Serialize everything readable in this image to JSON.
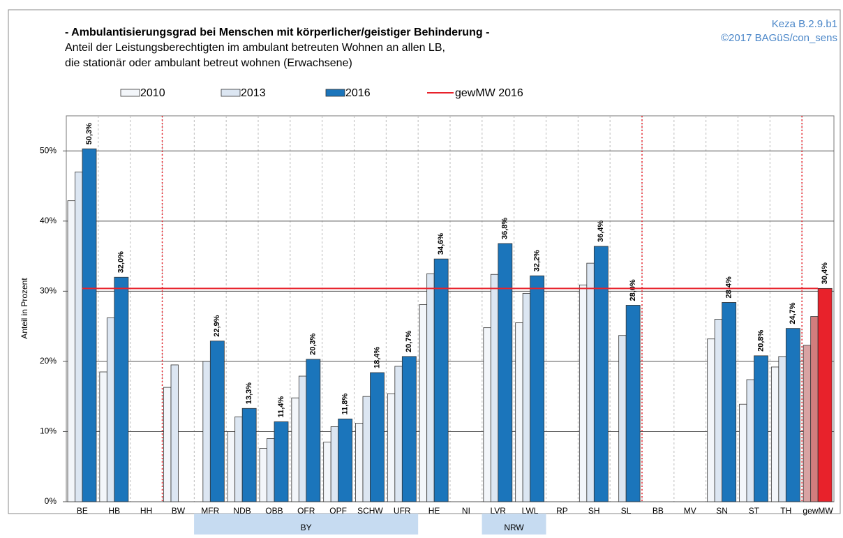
{
  "chart_data": {
    "type": "bar",
    "title": "- Ambulantisierungsgrad bei Menschen mit körperlicher/geistiger Behinderung -",
    "subtitle": [
      "Anteil der Leistungsberechtigten im ambulant betreuten Wohnen an allen LB,",
      "die stationär oder ambulant betreut wohnen (Erwachsene)"
    ],
    "source": [
      "Keza B.2.9.b1",
      "©2017 BAGüS/con_sens"
    ],
    "ylabel": "Anteil in Prozent",
    "categories": [
      "BE",
      "HB",
      "HH",
      "BW",
      "MFR",
      "NDB",
      "OBB",
      "OFR",
      "OPF",
      "SCHW",
      "UFR",
      "HE",
      "NI",
      "LVR",
      "LWL",
      "RP",
      "SH",
      "SL",
      "BB",
      "MV",
      "SN",
      "ST",
      "TH",
      "gewMW"
    ],
    "series": [
      {
        "name": "2010",
        "color": "#f3f6fa",
        "highlight_color": "#d9a3a3",
        "values": [
          42.9,
          18.5,
          null,
          16.3,
          null,
          10.0,
          7.6,
          14.8,
          8.5,
          11.2,
          15.4,
          28.1,
          null,
          24.8,
          25.5,
          null,
          30.9,
          null,
          null,
          null,
          23.2,
          13.9,
          19.2,
          22.3
        ]
      },
      {
        "name": "2013",
        "color": "#dce6f2",
        "highlight_color": "#d27d7d",
        "values": [
          47.0,
          26.2,
          null,
          19.5,
          20.0,
          12.1,
          9.0,
          17.9,
          10.7,
          15.0,
          19.3,
          32.5,
          null,
          32.4,
          29.7,
          null,
          34.0,
          23.7,
          null,
          null,
          26.0,
          17.4,
          20.7,
          26.4
        ]
      },
      {
        "name": "2016",
        "color": "#1b75bb",
        "highlight_color": "#e8222b",
        "values": [
          50.3,
          32.0,
          null,
          null,
          22.9,
          13.3,
          11.4,
          20.3,
          11.8,
          18.4,
          20.7,
          34.6,
          null,
          36.8,
          32.2,
          null,
          36.4,
          28.0,
          null,
          null,
          28.4,
          20.8,
          24.7,
          30.4
        ],
        "value_labels": [
          "50,3%",
          "32,0%",
          null,
          null,
          "22,9%",
          "13,3%",
          "11,4%",
          "20,3%",
          "11,8%",
          "18,4%",
          "20,7%",
          "34,6%",
          null,
          "36,8%",
          "32,2%",
          null,
          "36,4%",
          "28,0%",
          null,
          null,
          "28,4%",
          "20,8%",
          "24,7%",
          "30,4%"
        ]
      }
    ],
    "highlight_category": "gewMW",
    "reference_line": {
      "name": "gewMW 2016",
      "value": 30.4,
      "color": "#e8222b"
    },
    "separators_after": [
      "HH",
      "SL",
      "TH"
    ],
    "groups": [
      {
        "label": "BY",
        "from": "MFR",
        "to": "UFR"
      },
      {
        "label": "NRW",
        "from": "LVR",
        "to": "LWL"
      }
    ],
    "ylim": [
      0,
      55
    ],
    "yticks": [
      {
        "value": 0,
        "label": "0%"
      },
      {
        "value": 10,
        "label": "10%"
      },
      {
        "value": 20,
        "label": "20%"
      },
      {
        "value": 30,
        "label": "30%"
      },
      {
        "value": 40,
        "label": "40%"
      },
      {
        "value": 50,
        "label": "50%"
      }
    ],
    "grid": true
  }
}
